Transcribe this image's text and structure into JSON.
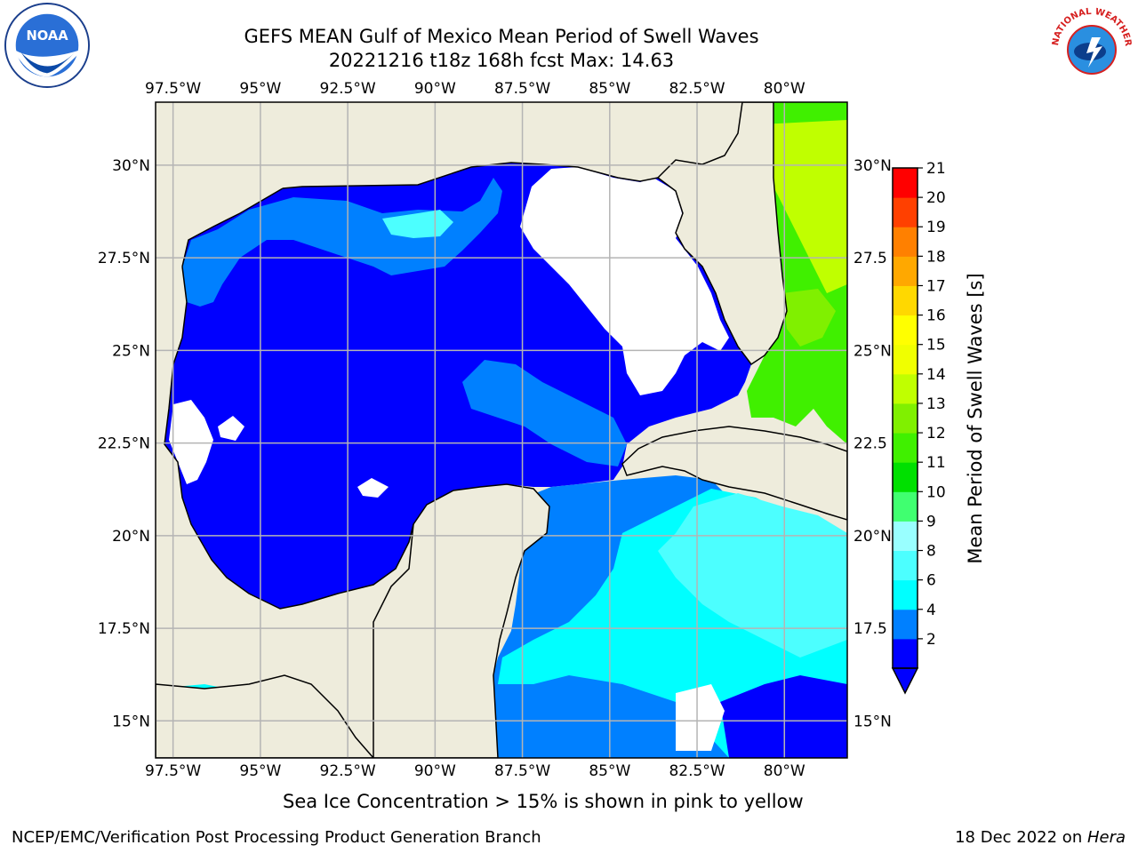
{
  "header": {
    "title_line1": "GEFS MEAN Gulf of Mexico Mean Period of Swell Waves",
    "title_line2": "20221216 t18z 168h fcst   Max: 14.63"
  },
  "map": {
    "lon_labels": [
      "97.5°W",
      "95°W",
      "92.5°W",
      "90°W",
      "87.5°W",
      "85°W",
      "82.5°W",
      "80°W"
    ],
    "lon_values": [
      -97.5,
      -95,
      -92.5,
      -90,
      -87.5,
      -85,
      -82.5,
      -80
    ],
    "lat_labels_left": [
      "30°N",
      "27.5°N",
      "25°N",
      "22.5°N",
      "20°N",
      "17.5°N",
      "15°N"
    ],
    "lat_labels_right": [
      "30°N",
      "27.5",
      "25°N",
      "22.5",
      "20°N",
      "17.5",
      "15°N"
    ],
    "lat_values": [
      30,
      27.5,
      25,
      22.5,
      20,
      17.5,
      15
    ],
    "extent": {
      "lon_min": -98,
      "lon_max": -78.2,
      "lat_min": 14,
      "lat_max": 31.7
    },
    "land_color": "#eeecdc",
    "grid_color": "#b4b4b4"
  },
  "colorbar": {
    "label": "Mean Period of Swell Waves [s]",
    "ticks": [
      "21",
      "20",
      "19",
      "18",
      "17",
      "16",
      "15",
      "14",
      "13",
      "12",
      "11",
      "10",
      "9",
      "8",
      "6",
      "4",
      "2"
    ],
    "colors": [
      "#0000ff",
      "#0080ff",
      "#00ffff",
      "#4cffff",
      "#99ffff",
      "#40ff70",
      "#00e000",
      "#40f000",
      "#80f000",
      "#c0ff00",
      "#f0ff00",
      "#ffff00",
      "#ffd800",
      "#ffa800",
      "#ff8000",
      "#ff4000",
      "#ff0000"
    ]
  },
  "notes": {
    "ice": "Sea Ice Concentration > 15% is shown in pink to yellow"
  },
  "footer": {
    "credit": "NCEP/EMC/Verification Post Processing Product Generation Branch",
    "date": "18 Dec 2022 on ",
    "machine": "Hera"
  },
  "logos": {
    "noaa_text": "NOAA",
    "nws_text": "NATIONAL WEATHER SERVICE"
  }
}
